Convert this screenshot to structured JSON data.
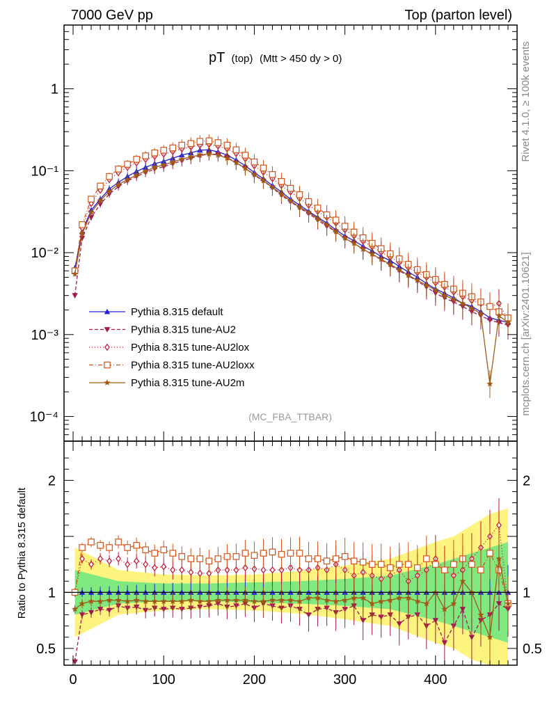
{
  "header": {
    "energy_label": "7000 GeV pp",
    "process_label": "Top (parton level)"
  },
  "side_labels": {
    "rivet": "Rivet 4.1.0, ≥ 100k events",
    "mcplots": "mcplots.cern.ch [arXiv:2401.10621]"
  },
  "plot": {
    "title_main": "pT",
    "title_sub": "(top)",
    "title_cut": "(Mtt > 450 dy > 0)",
    "analysis_id": "(MC_FBA_TTBAR)",
    "ratio_ylabel": "Ratio to Pythia 8.315 default",
    "main_yticks": [
      {
        "label": "1",
        "value": 1
      },
      {
        "label": "10⁻¹",
        "value": 0.1
      },
      {
        "label": "10⁻²",
        "value": 0.01
      },
      {
        "label": "10⁻³",
        "value": 0.001
      },
      {
        "label": "10⁻⁴",
        "value": 0.0001
      }
    ],
    "ratio_yticks": [
      {
        "label": "2",
        "value": 2
      },
      {
        "label": "1",
        "value": 1
      },
      {
        "label": "0.5",
        "value": 0.5
      }
    ],
    "xticks": [
      {
        "label": "0",
        "value": 0
      },
      {
        "label": "100",
        "value": 100
      },
      {
        "label": "200",
        "value": 200
      },
      {
        "label": "300",
        "value": 300
      },
      {
        "label": "400",
        "value": 400
      }
    ]
  },
  "chart_data": {
    "type": "line",
    "x_range": [
      -10,
      490
    ],
    "main_y_range_log": [
      5e-05,
      6
    ],
    "ratio_y_range": [
      0.35,
      2.35
    ],
    "x": [
      2,
      10,
      20,
      30,
      40,
      50,
      60,
      70,
      80,
      90,
      100,
      110,
      120,
      130,
      140,
      150,
      160,
      170,
      180,
      190,
      200,
      210,
      220,
      230,
      240,
      250,
      260,
      270,
      280,
      290,
      300,
      310,
      320,
      330,
      340,
      350,
      360,
      370,
      380,
      390,
      400,
      410,
      420,
      430,
      440,
      450,
      460,
      470,
      480
    ],
    "series": [
      {
        "name": "Pythia 8.315 default",
        "color": "#1f1fd6",
        "dash": "",
        "marker": "triangle-up",
        "values": [
          0.0065,
          0.018,
          0.033,
          0.045,
          0.06,
          0.072,
          0.085,
          0.098,
          0.11,
          0.122,
          0.13,
          0.142,
          0.155,
          0.165,
          0.178,
          0.18,
          0.17,
          0.155,
          0.135,
          0.115,
          0.095,
          0.08,
          0.066,
          0.055,
          0.045,
          0.038,
          0.032,
          0.027,
          0.023,
          0.019,
          0.016,
          0.014,
          0.012,
          0.0105,
          0.009,
          0.008,
          0.0068,
          0.0058,
          0.005,
          0.0042,
          0.0036,
          0.0032,
          0.0028,
          0.0024,
          0.0022,
          0.0019,
          0.0016,
          0.0015,
          0.0014
        ],
        "ratio": [
          1.0,
          1.0,
          1.0,
          1.0,
          1.0,
          1.0,
          1.0,
          1.0,
          1.0,
          1.0,
          1.0,
          1.0,
          1.0,
          1.0,
          1.0,
          1.0,
          1.0,
          1.0,
          1.0,
          1.0,
          1.0,
          1.0,
          1.0,
          1.0,
          1.0,
          1.0,
          1.0,
          1.0,
          1.0,
          1.0,
          1.0,
          1.0,
          1.0,
          1.0,
          1.0,
          1.0,
          1.0,
          1.0,
          1.0,
          1.0,
          1.0,
          1.0,
          1.0,
          1.0,
          1.0,
          1.0,
          1.0,
          1.0,
          1.0
        ]
      },
      {
        "name": "Pythia 8.315 tune-AU2",
        "color": "#a3174f",
        "dash": "5,3",
        "marker": "triangle-down",
        "values": [
          0.003,
          0.015,
          0.027,
          0.039,
          0.052,
          0.064,
          0.075,
          0.085,
          0.095,
          0.105,
          0.112,
          0.122,
          0.132,
          0.142,
          0.152,
          0.16,
          0.158,
          0.145,
          0.125,
          0.108,
          0.088,
          0.075,
          0.062,
          0.05,
          0.042,
          0.035,
          0.03,
          0.025,
          0.021,
          0.018,
          0.015,
          0.013,
          0.011,
          0.0095,
          0.0082,
          0.007,
          0.006,
          0.0052,
          0.0045,
          0.0038,
          0.0032,
          0.0028,
          0.0025,
          0.0022,
          0.0019,
          0.0017,
          0.0015,
          0.0014,
          0.0013
        ],
        "ratio": [
          0.38,
          0.8,
          0.82,
          0.85,
          0.84,
          0.88,
          0.86,
          0.87,
          0.84,
          0.86,
          0.85,
          0.86,
          0.85,
          0.86,
          0.87,
          0.88,
          0.9,
          0.87,
          0.88,
          0.9,
          0.86,
          0.9,
          0.88,
          0.86,
          0.88,
          0.85,
          0.8,
          0.85,
          0.86,
          0.82,
          0.85,
          0.88,
          0.75,
          0.8,
          0.78,
          0.8,
          0.72,
          0.78,
          0.8,
          0.7,
          0.75,
          0.55,
          0.7,
          0.85,
          0.6,
          0.75,
          0.8,
          0.9,
          0.85
        ]
      },
      {
        "name": "Pythia 8.315 tune-AU2lox",
        "color": "#c8102e",
        "dash": "1,3",
        "marker": "diamond-open",
        "values": [
          0.006,
          0.02,
          0.04,
          0.058,
          0.078,
          0.095,
          0.11,
          0.125,
          0.138,
          0.15,
          0.16,
          0.172,
          0.185,
          0.195,
          0.205,
          0.21,
          0.2,
          0.185,
          0.162,
          0.14,
          0.115,
          0.096,
          0.08,
          0.066,
          0.055,
          0.046,
          0.038,
          0.032,
          0.027,
          0.023,
          0.019,
          0.016,
          0.0138,
          0.0118,
          0.0101,
          0.0088,
          0.0076,
          0.0066,
          0.0057,
          0.005,
          0.0043,
          0.0038,
          0.0033,
          0.0029,
          0.0026,
          0.0024,
          0.0022,
          0.0024,
          0.0015
        ],
        "ratio": [
          1.0,
          1.3,
          1.25,
          1.3,
          1.28,
          1.3,
          1.25,
          1.28,
          1.25,
          1.22,
          1.23,
          1.2,
          1.2,
          1.18,
          1.17,
          1.17,
          1.2,
          1.2,
          1.2,
          1.22,
          1.21,
          1.2,
          1.2,
          1.2,
          1.22,
          1.2,
          1.2,
          1.22,
          1.2,
          1.25,
          1.2,
          1.15,
          1.18,
          1.15,
          1.12,
          1.15,
          1.2,
          1.1,
          1.15,
          1.2,
          1.3,
          1.2,
          1.15,
          1.2,
          1.3,
          1.4,
          1.5,
          1.6,
          0.9
        ]
      },
      {
        "name": "Pythia 8.315 tune-AU2loxx",
        "color": "#d2551a",
        "dash": "6,3,1,3",
        "marker": "square-open",
        "values": [
          0.006,
          0.022,
          0.045,
          0.065,
          0.085,
          0.105,
          0.12,
          0.138,
          0.152,
          0.165,
          0.178,
          0.19,
          0.205,
          0.215,
          0.228,
          0.232,
          0.22,
          0.205,
          0.18,
          0.155,
          0.128,
          0.108,
          0.09,
          0.074,
          0.061,
          0.051,
          0.042,
          0.035,
          0.029,
          0.025,
          0.021,
          0.0178,
          0.0152,
          0.013,
          0.0112,
          0.0097,
          0.0084,
          0.0072,
          0.0062,
          0.0054,
          0.0047,
          0.0041,
          0.0036,
          0.0032,
          0.0029,
          0.0025,
          0.0022,
          0.0019,
          0.0016
        ],
        "ratio": [
          1.0,
          1.4,
          1.45,
          1.42,
          1.4,
          1.45,
          1.4,
          1.42,
          1.38,
          1.35,
          1.38,
          1.35,
          1.32,
          1.3,
          1.3,
          1.28,
          1.3,
          1.32,
          1.32,
          1.35,
          1.33,
          1.35,
          1.36,
          1.34,
          1.35,
          1.35,
          1.3,
          1.3,
          1.28,
          1.3,
          1.32,
          1.28,
          1.27,
          1.25,
          1.25,
          1.22,
          1.25,
          1.25,
          1.22,
          1.3,
          1.25,
          1.2,
          1.25,
          1.3,
          1.25,
          1.2,
          1.35,
          1.2,
          0.9
        ]
      },
      {
        "name": "Pythia 8.315 tune-AU2m",
        "color": "#a05a14",
        "dash": "",
        "marker": "star",
        "values": [
          0.0055,
          0.017,
          0.031,
          0.043,
          0.056,
          0.068,
          0.078,
          0.089,
          0.099,
          0.11,
          0.118,
          0.128,
          0.138,
          0.148,
          0.155,
          0.16,
          0.155,
          0.142,
          0.125,
          0.107,
          0.09,
          0.076,
          0.063,
          0.052,
          0.043,
          0.036,
          0.031,
          0.026,
          0.022,
          0.018,
          0.015,
          0.013,
          0.011,
          0.0096,
          0.0083,
          0.0072,
          0.0062,
          0.0053,
          0.0046,
          0.004,
          0.0035,
          0.003,
          0.0027,
          0.0024,
          0.0021,
          0.0018,
          0.00025,
          0.0017,
          0.0014
        ],
        "ratio": [
          0.85,
          0.9,
          0.92,
          0.92,
          0.93,
          0.93,
          0.92,
          0.93,
          0.92,
          0.92,
          0.92,
          0.92,
          0.92,
          0.93,
          0.92,
          0.92,
          0.93,
          0.93,
          0.93,
          0.93,
          0.92,
          0.92,
          0.93,
          0.93,
          0.93,
          0.92,
          0.95,
          0.95,
          0.93,
          0.92,
          0.93,
          0.95,
          0.95,
          0.9,
          0.92,
          0.93,
          0.95,
          0.95,
          0.92,
          0.9,
          1.0,
          0.85,
          0.9,
          1.1,
          1.0,
          0.8,
          0.6,
          1.3,
          0.9
        ]
      }
    ],
    "ratio_bands": {
      "x": [
        2,
        50,
        100,
        150,
        200,
        250,
        300,
        350,
        400,
        420,
        440,
        460,
        480
      ],
      "stat_halfwidth": [
        0.2,
        0.1,
        0.08,
        0.08,
        0.09,
        0.1,
        0.12,
        0.15,
        0.25,
        0.3,
        0.35,
        0.4,
        0.45
      ],
      "total_halfwidth": [
        0.4,
        0.2,
        0.16,
        0.15,
        0.16,
        0.19,
        0.24,
        0.3,
        0.45,
        0.5,
        0.6,
        0.7,
        0.75
      ],
      "stat_color": "#7fe87f",
      "total_color": "#fdf47f"
    }
  }
}
